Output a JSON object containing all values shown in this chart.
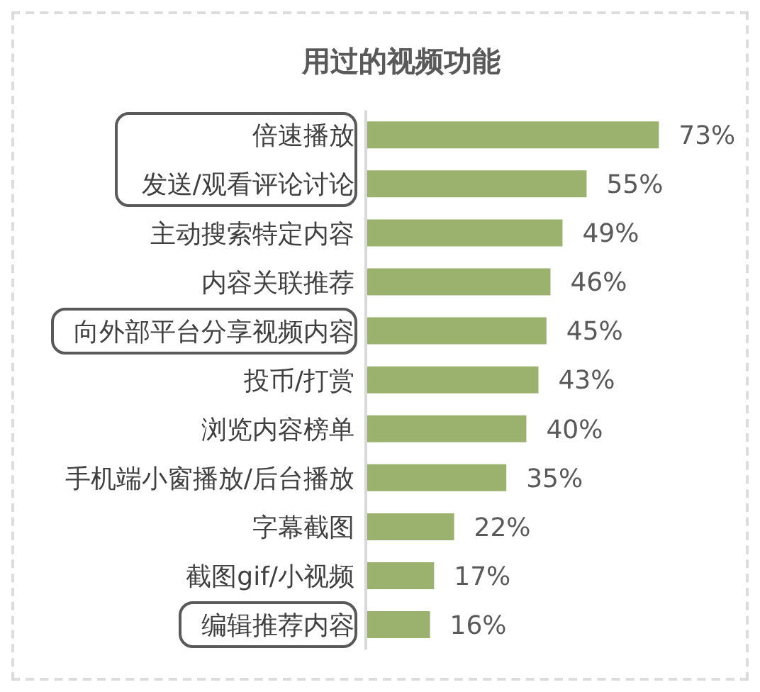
{
  "chart_data": {
    "type": "bar",
    "orientation": "horizontal",
    "title": "用过的视频功能",
    "categories": [
      "倍速播放",
      "发送/观看评论讨论",
      "主动搜索特定内容",
      "内容关联推荐",
      "向外部平台分享视频内容",
      "投币/打赏",
      "浏览内容榜单",
      "手机端小窗播放/后台播放",
      "字幕截图",
      "截图gif/小视频",
      "编辑推荐内容"
    ],
    "values": [
      73,
      55,
      49,
      46,
      45,
      43,
      40,
      35,
      22,
      17,
      16
    ],
    "value_labels": [
      "73%",
      "55%",
      "49%",
      "46%",
      "45%",
      "43%",
      "40%",
      "35%",
      "22%",
      "17%",
      "16%"
    ],
    "color": "#9bb26f"
  }
}
